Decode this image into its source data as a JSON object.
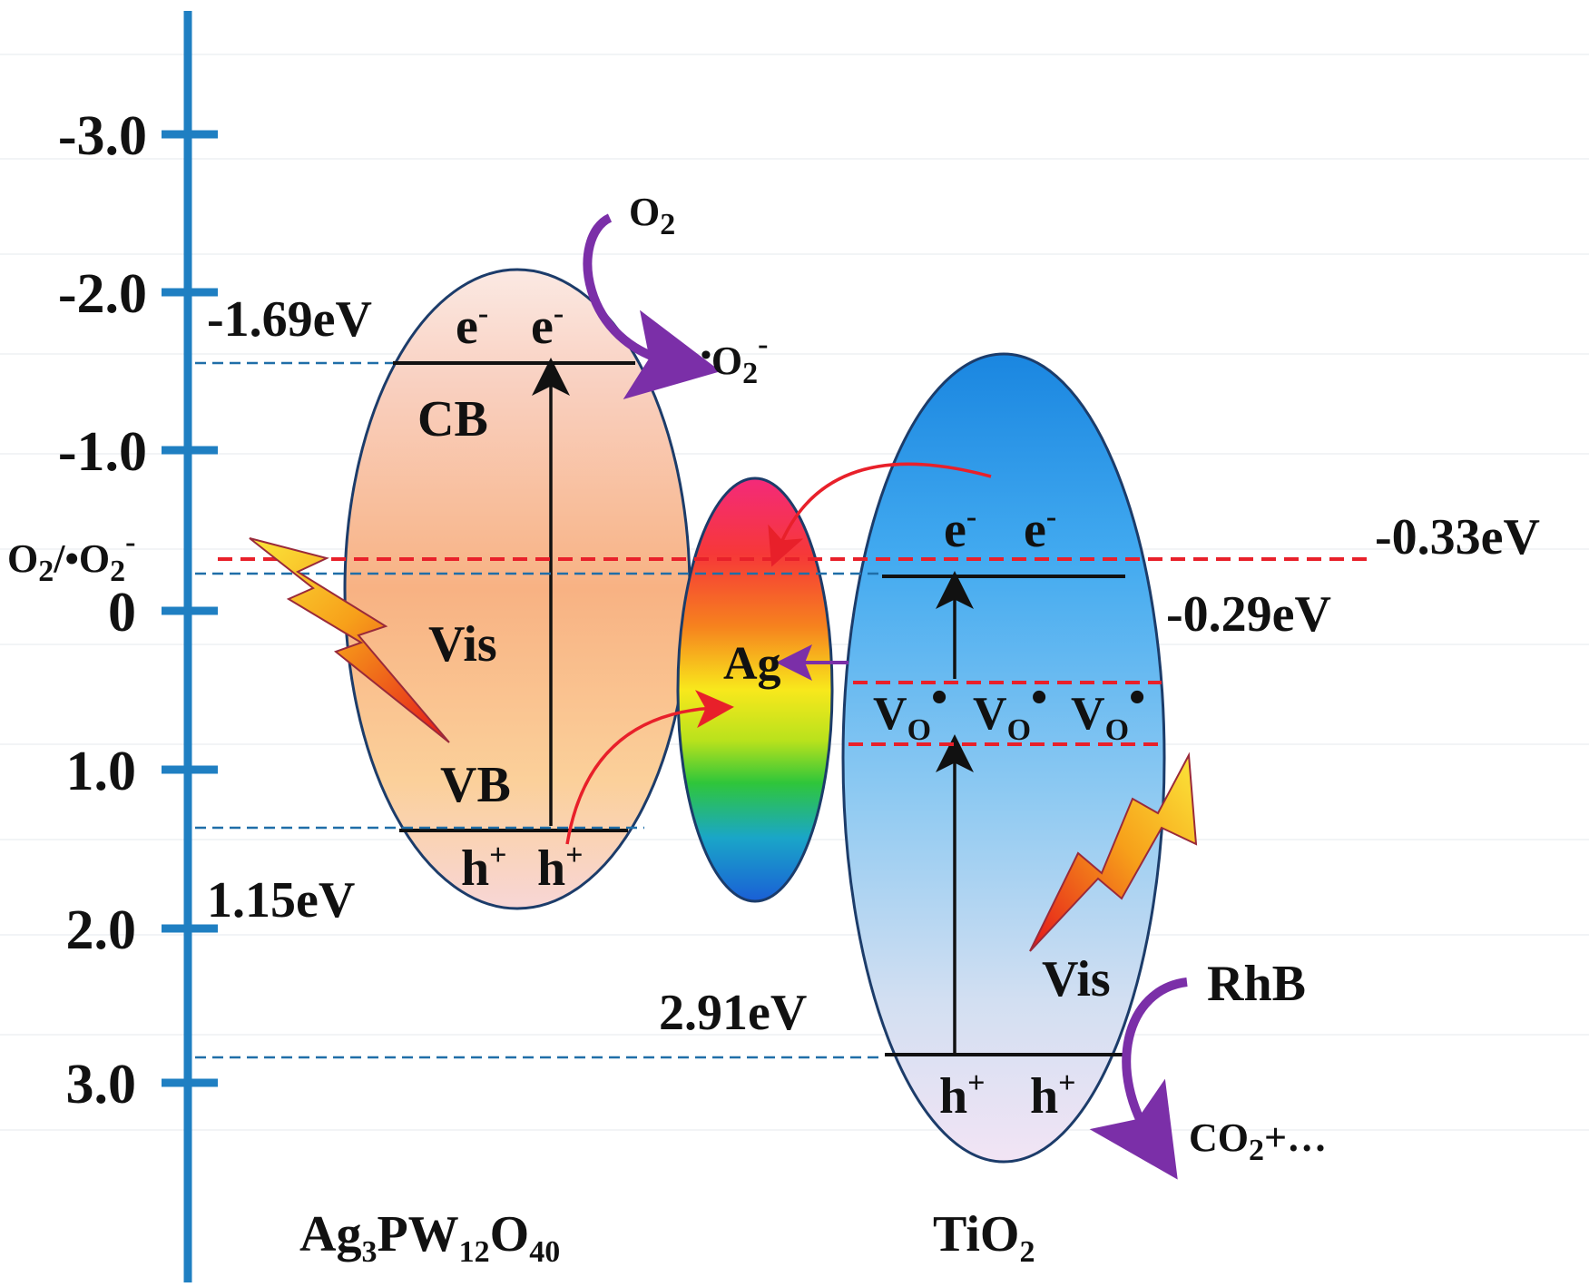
{
  "axis": {
    "ticks": [
      "-3.0",
      "-2.0",
      "-1.0",
      "0",
      "1.0",
      "2.0",
      "3.0"
    ],
    "axis_color": "#1f7fc2"
  },
  "references": {
    "redox_label_base": "O",
    "redox_label_sub": "2",
    "redox_label_rest": "/•O",
    "redox_label_sub2": "2",
    "redox_label_sup": "-",
    "redox_value": "-0.33eV",
    "tio2_cb_value": "-0.29eV",
    "apw_cb_value": "-1.69eV",
    "apw_vb_value": "1.15eV",
    "tio2_gap_value": "2.91eV"
  },
  "apw": {
    "electron_1": "e",
    "electron_2": "e",
    "charge_minus": "-",
    "cb_label": "CB",
    "vb_label": "VB",
    "vis_label": "Vis",
    "hole": "h",
    "charge_plus": "+",
    "name_part_1": "Ag",
    "name_sub_1": "3",
    "name_part_2": "PW",
    "name_sub_2": "12",
    "name_part_3": "O",
    "name_sub_3": "40",
    "fill_top": "#fbe3d9",
    "fill_mid": "#f9b98a"
  },
  "ag": {
    "label": "Ag"
  },
  "tio2": {
    "electron_1": "e",
    "electron_2": "e",
    "charge_minus": "-",
    "vis_label": "Vis",
    "hole": "h",
    "charge_plus": "+",
    "vacancy": "V",
    "vacancy_sub": "O",
    "vacancy_dot": "•",
    "name_part_1": "TiO",
    "name_sub_1": "2",
    "fill_top": "#1f8ee6",
    "fill_bottom": "#f3e6f6"
  },
  "reactions": {
    "o2": "O",
    "o2_sub": "2",
    "superoxide_dot": "•",
    "superoxide_o": "O",
    "superoxide_sub": "2",
    "superoxide_sup": "-",
    "rhb": "RhB",
    "co2": "CO",
    "co2_sub": "2",
    "co2_rest": "+…"
  },
  "colors": {
    "red_line": "#e8202a",
    "blue_dash": "#1f6ea8",
    "purple_arrow": "#7b2fa8"
  }
}
